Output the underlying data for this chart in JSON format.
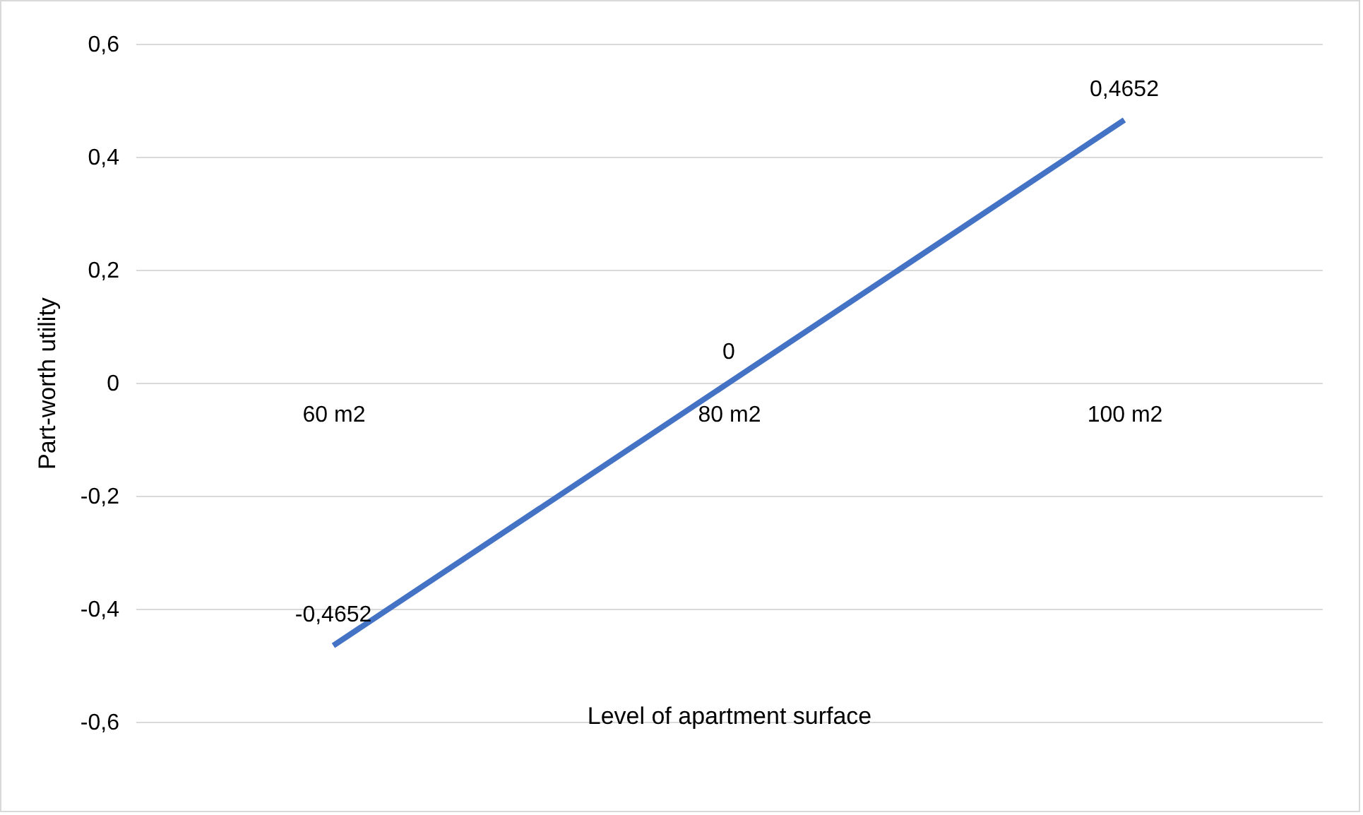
{
  "chart_data": {
    "type": "line",
    "xlabel": "Level of apartment surface",
    "ylabel": "Part-worth utility",
    "categories": [
      "60 m2",
      "80 m2",
      "100 m2"
    ],
    "series": [
      {
        "color": "#4472c4",
        "values": [
          -0.4652,
          0,
          0.4652
        ],
        "value_labels": [
          "-0,4652",
          "0",
          "0,4652"
        ]
      }
    ],
    "ylim": [
      -0.6,
      0.6
    ],
    "yticks": [
      {
        "value": -0.6,
        "label": "-0,6"
      },
      {
        "value": -0.4,
        "label": "-0,4"
      },
      {
        "value": -0.2,
        "label": "-0,2"
      },
      0,
      {
        "value": 0.2,
        "label": "0,2"
      },
      {
        "value": 0.4,
        "label": "0,4"
      },
      {
        "value": 0.6,
        "label": "0,6"
      }
    ],
    "grid": "y"
  }
}
